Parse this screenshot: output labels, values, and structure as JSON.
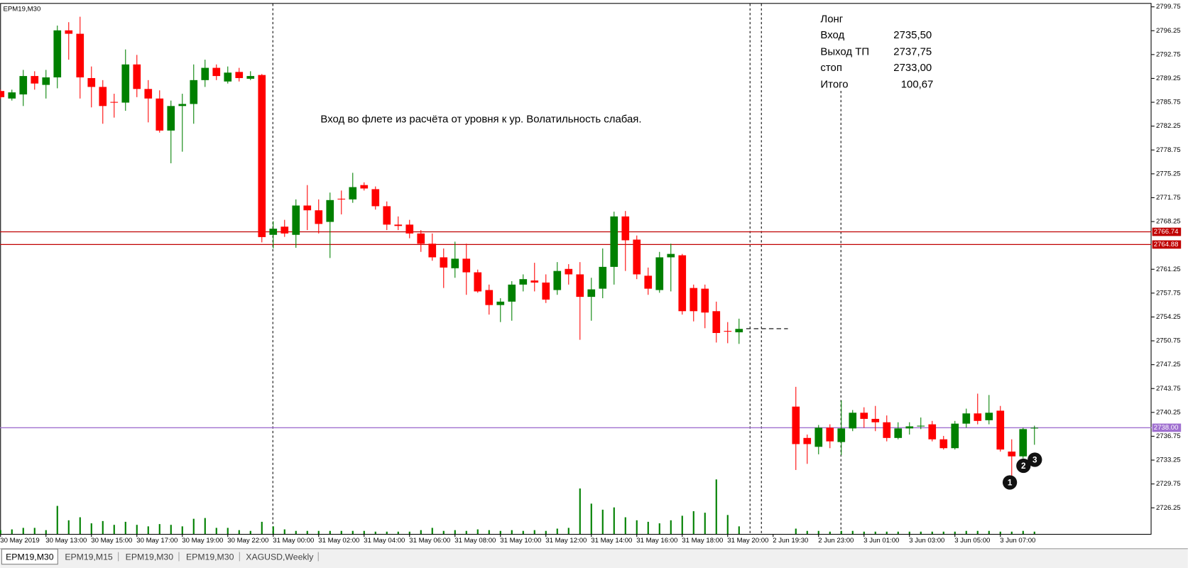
{
  "window": {
    "symbol": "EPM19,M30",
    "tabs": [
      "EPM19,M30",
      "EPM19,M15",
      "EPM19,M30",
      "EPM19,M30",
      "XAGUSD,Weekly"
    ],
    "trade_panel": {
      "title": "Лонг",
      "rows": [
        [
          "Вход",
          "2735,50"
        ],
        [
          "Выход ТП",
          "2737,75"
        ],
        [
          "стоп",
          "2733,00"
        ],
        [
          "Итого",
          "100,67"
        ]
      ]
    }
  },
  "chart_data": {
    "type": "candlestick",
    "annotation": "Вход во флете из расчёта от уровня к ур. Волатильность слабая.",
    "categories": [
      "30 May 2019",
      null,
      null,
      null,
      "30 May 13:00",
      null,
      null,
      null,
      "30 May 15:00",
      null,
      null,
      null,
      "30 May 17:00",
      null,
      null,
      null,
      "30 May 19:00",
      null,
      null,
      null,
      "30 May 22:00",
      null,
      null,
      null,
      "31 May 00:00",
      null,
      null,
      null,
      "31 May 02:00",
      null,
      null,
      null,
      "31 May 04:00",
      null,
      null,
      null,
      "31 May 06:00",
      null,
      null,
      null,
      "31 May 08:00",
      null,
      null,
      null,
      "31 May 10:00",
      null,
      null,
      null,
      "31 May 12:00",
      null,
      null,
      null,
      "31 May 14:00",
      null,
      null,
      null,
      "31 May 16:00",
      null,
      null,
      null,
      "31 May 18:00",
      null,
      null,
      null,
      "31 May 20:00",
      null,
      null,
      null,
      "2 Jun 19:30",
      null,
      null,
      null,
      "2 Jun 23:00",
      null,
      null,
      null,
      "3 Jun 01:00",
      null,
      null,
      null,
      "3 Jun 03:00",
      null,
      null,
      null,
      "3 Jun 05:00",
      null,
      null,
      null,
      "3 Jun 07:00",
      null,
      null,
      null
    ],
    "open": [
      2787.4,
      2786.3,
      2786.9,
      2789.6,
      2788.3,
      2789.4,
      2796.3,
      2795.8,
      2789.3,
      2788.0,
      2785.8,
      2785.7,
      2791.3,
      2787.7,
      2786.3,
      2781.6,
      2785.2,
      2785.5,
      2789.0,
      2790.8,
      2788.8,
      2790.2,
      2789.2,
      2789.75,
      2766.3,
      2767.5,
      2766.3,
      2770.6,
      2769.9,
      2768.2,
      2771.6,
      2771.5,
      2773.6,
      2773.0,
      2770.5,
      2767.8,
      2767.8,
      2766.5,
      2765.0,
      2763.0,
      2761.4,
      2762.8,
      2760.8,
      2758.2,
      2756.0,
      2756.5,
      2759.0,
      2759.6,
      2759.3,
      2758.2,
      2761.3,
      2760.5,
      2757.2,
      2758.4,
      2761.6,
      2769.0,
      2765.6,
      2760.3,
      2758.2,
      2763.0,
      2763.3,
      2758.5,
      2758.4,
      2755.1,
      2752.2,
      2752.0,
      null,
      null,
      null,
      null,
      2741.1,
      2736.5,
      2735.2,
      2738.0,
      2735.9,
      2737.9,
      2740.2,
      2739.3,
      2738.8,
      2736.5,
      2737.9,
      2738.3,
      2738.5,
      2736.3,
      2735.0,
      2738.6,
      2740.1,
      2739.1,
      2740.5,
      2734.5,
      2733.8,
      2737.9
    ],
    "high": [
      2787.6,
      2787.6,
      2790.5,
      2790.3,
      2790.5,
      2797.0,
      2797.5,
      2798.3,
      2791.0,
      2789.0,
      2787.0,
      2793.5,
      2792.7,
      2789.0,
      2787.5,
      2786.0,
      2787.0,
      2791.3,
      2792.0,
      2791.3,
      2791.0,
      2790.8,
      2790.3,
      2789.9,
      2768.3,
      2768.5,
      2771.5,
      2773.6,
      2771.5,
      2772.5,
      2772.8,
      2775.4,
      2774.0,
      2773.4,
      2771.2,
      2769.0,
      2768.5,
      2767.0,
      2766.5,
      2764.3,
      2765.3,
      2765.0,
      2761.2,
      2759.0,
      2757.0,
      2759.5,
      2760.5,
      2762.2,
      2760.5,
      2762.3,
      2762.0,
      2762.3,
      2760.0,
      2764.3,
      2769.7,
      2769.8,
      2766.2,
      2761.5,
      2763.8,
      2765.0,
      2763.5,
      2759.0,
      2759.0,
      2756.5,
      2753.5,
      2754.0,
      null,
      null,
      null,
      null,
      2744.0,
      2737.0,
      2738.4,
      2738.5,
      2742.0,
      2740.6,
      2741.0,
      2741.2,
      2739.8,
      2738.8,
      2738.8,
      2739.5,
      2739.0,
      2736.8,
      2739.0,
      2740.8,
      2743.0,
      2742.8,
      2741.2,
      2736.3,
      2738.0,
      2738.3
    ],
    "low": [
      2786.3,
      2786.0,
      2785.2,
      2787.6,
      2786.3,
      2787.8,
      2792.0,
      2786.3,
      2785.0,
      2782.6,
      2783.5,
      2784.5,
      2786.5,
      2782.8,
      2781.3,
      2776.8,
      2778.5,
      2782.6,
      2788.0,
      2789.0,
      2788.5,
      2788.8,
      2789.0,
      2765.2,
      2764.3,
      2766.0,
      2764.4,
      2767.0,
      2766.5,
      2762.9,
      2769.3,
      2771.0,
      2772.8,
      2770.0,
      2767.0,
      2767.0,
      2765.8,
      2763.8,
      2762.5,
      2758.5,
      2760.0,
      2757.5,
      2757.8,
      2754.6,
      2753.5,
      2753.7,
      2758.0,
      2758.0,
      2756.3,
      2757.5,
      2759.0,
      2750.9,
      2753.7,
      2757.0,
      2759.0,
      2761.0,
      2759.8,
      2757.5,
      2757.8,
      2758.0,
      2754.6,
      2753.6,
      2752.6,
      2750.5,
      2750.4,
      2750.3,
      null,
      null,
      null,
      null,
      2731.8,
      2732.7,
      2734.1,
      2735.0,
      2734.0,
      2737.5,
      2738.0,
      2737.5,
      2736.0,
      2736.3,
      2737.0,
      2737.8,
      2736.0,
      2734.8,
      2734.8,
      2738.0,
      2738.5,
      2738.5,
      2734.5,
      2730.8,
      2733.5,
      2735.5
    ],
    "close": [
      2786.5,
      2787.2,
      2789.6,
      2788.5,
      2789.4,
      2796.3,
      2795.8,
      2789.4,
      2788.0,
      2785.2,
      2785.7,
      2791.3,
      2787.7,
      2786.3,
      2781.6,
      2785.2,
      2785.5,
      2789.0,
      2790.8,
      2789.6,
      2790.1,
      2789.3,
      2789.6,
      2765.97,
      2767.2,
      2766.5,
      2770.6,
      2769.9,
      2767.9,
      2771.4,
      2771.5,
      2773.3,
      2773.1,
      2770.5,
      2767.8,
      2767.6,
      2766.5,
      2765.0,
      2763.0,
      2761.5,
      2762.8,
      2760.8,
      2758.0,
      2756.0,
      2756.5,
      2759.0,
      2759.8,
      2759.3,
      2756.8,
      2761.0,
      2760.5,
      2757.2,
      2758.3,
      2761.6,
      2769.0,
      2765.5,
      2760.5,
      2758.4,
      2763.0,
      2763.5,
      2755.1,
      2755.1,
      2754.9,
      2751.9,
      2752.1,
      2752.5,
      null,
      null,
      null,
      null,
      2735.6,
      2735.6,
      2738.0,
      2736.0,
      2737.9,
      2740.2,
      2739.3,
      2738.8,
      2736.5,
      2737.9,
      2738.2,
      2738.3,
      2736.3,
      2735.0,
      2738.6,
      2740.1,
      2739.0,
      2740.2,
      2734.8,
      2733.8,
      2737.8,
      2738.0
    ],
    "volumes": [
      5,
      6,
      8,
      8,
      5,
      37,
      18,
      22,
      14,
      17,
      12,
      16,
      12,
      10,
      13,
      12,
      10,
      20,
      21,
      8,
      8,
      5,
      4,
      16,
      10,
      6,
      4,
      4,
      4,
      4,
      4,
      4,
      4,
      3,
      3,
      3,
      3,
      5,
      8,
      4,
      5,
      4,
      6,
      5,
      4,
      5,
      4,
      5,
      4,
      7,
      8,
      60,
      40,
      32,
      35,
      22,
      18,
      16,
      14,
      18,
      24,
      30,
      28,
      72,
      25,
      10,
      null,
      null,
      null,
      null,
      7,
      4,
      4,
      3,
      4,
      4,
      3,
      3,
      3,
      3,
      3,
      3,
      3,
      3,
      3,
      4,
      4,
      4,
      3,
      3,
      4,
      3
    ],
    "bull_color": "#008000",
    "bear_color": "#ff0000",
    "volume_color": "#008000",
    "ylim": [
      2722.42,
      2800.31
    ],
    "yticks": [
      2799.75,
      2796.25,
      2792.75,
      2789.25,
      2785.75,
      2782.25,
      2778.75,
      2775.25,
      2771.75,
      2768.25,
      2761.25,
      2757.75,
      2754.25,
      2750.75,
      2747.25,
      2743.75,
      2740.25,
      2736.75,
      2733.25,
      2729.75,
      2726.25
    ],
    "price_lines": [
      {
        "value": 2766.74,
        "label": "2766.74",
        "color": "#c00000"
      },
      {
        "value": 2764.88,
        "label": "2764.88",
        "color": "#c00000"
      },
      {
        "value": 2738.0,
        "label": "2738.00",
        "color": "#a070d0"
      }
    ],
    "markers": [
      "1",
      "2",
      "3"
    ]
  }
}
